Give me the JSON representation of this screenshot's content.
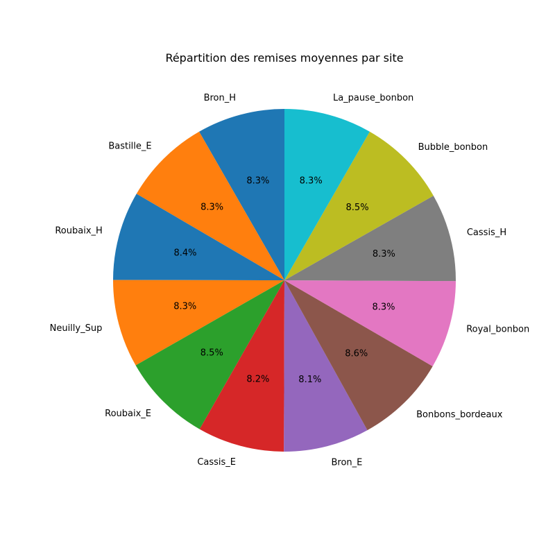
{
  "chart_data": {
    "type": "pie",
    "title": "Répartition des remises moyennes par site",
    "start_angle_deg": 90,
    "direction": "counterclockwise",
    "slices": [
      {
        "label": "Bron_H",
        "percent": 8.3,
        "percent_label": "8.3%",
        "color": "#1f77b4"
      },
      {
        "label": "Bastille_E",
        "percent": 8.3,
        "percent_label": "8.3%",
        "color": "#ff7f0e"
      },
      {
        "label": "Roubaix_H",
        "percent": 8.4,
        "percent_label": "8.4%",
        "color": "#1f77b4"
      },
      {
        "label": "Neuilly_Sup",
        "percent": 8.3,
        "percent_label": "8.3%",
        "color": "#ff7f0e"
      },
      {
        "label": "Roubaix_E",
        "percent": 8.5,
        "percent_label": "8.5%",
        "color": "#2ca02c"
      },
      {
        "label": "Cassis_E",
        "percent": 8.2,
        "percent_label": "8.2%",
        "color": "#d62728"
      },
      {
        "label": "Bron_E",
        "percent": 8.1,
        "percent_label": "8.1%",
        "color": "#9467bd"
      },
      {
        "label": "Bonbons_bordeaux",
        "percent": 8.6,
        "percent_label": "8.6%",
        "color": "#8c564b"
      },
      {
        "label": "Royal_bonbon",
        "percent": 8.3,
        "percent_label": "8.3%",
        "color": "#e377c2"
      },
      {
        "label": "Cassis_H",
        "percent": 8.3,
        "percent_label": "8.3%",
        "color": "#7f7f7f"
      },
      {
        "label": "Bubble_bonbon",
        "percent": 8.5,
        "percent_label": "8.5%",
        "color": "#bcbd22"
      },
      {
        "label": "La_pause_bonbon",
        "percent": 8.3,
        "percent_label": "8.3%",
        "color": "#17becf"
      }
    ]
  }
}
